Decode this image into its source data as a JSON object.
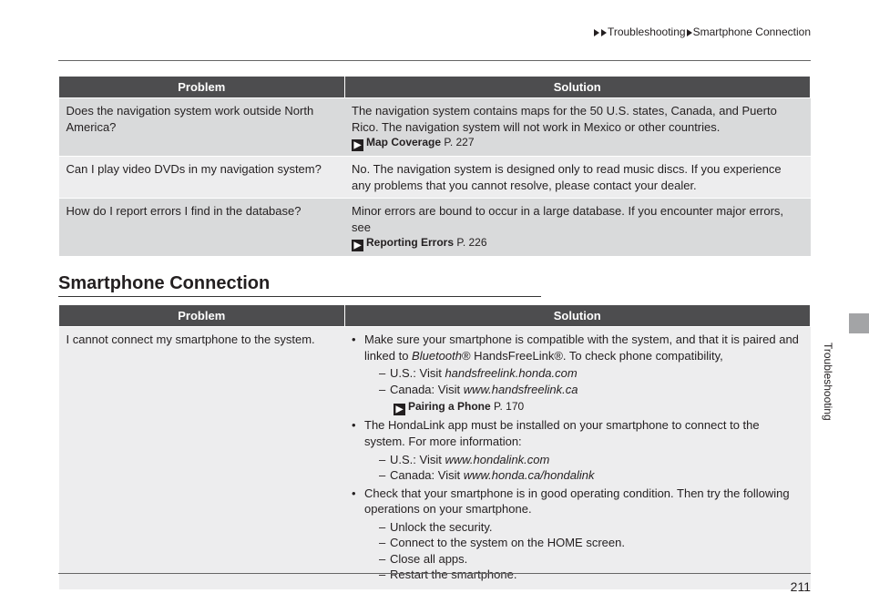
{
  "breadcrumb": {
    "part1": "Troubleshooting",
    "part2": "Smartphone Connection"
  },
  "headers": {
    "problem": "Problem",
    "solution": "Solution"
  },
  "table1": {
    "rows": [
      {
        "problem": "Does the navigation system work outside North America?",
        "solution": "The navigation system contains maps for the 50 U.S. states, Canada, and Puerto Rico. The navigation system will not work in Mexico or other countries.",
        "xref": {
          "title": "Map Coverage",
          "page": "P. 227"
        }
      },
      {
        "problem": "Can I play video DVDs in my navigation system?",
        "solution": "No. The navigation system is designed only to read music discs. If you experience any problems that you cannot resolve, please contact your dealer."
      },
      {
        "problem": "How do I report errors I find in the database?",
        "solution": "Minor errors are bound to occur in a large database. If you encounter major errors, see",
        "xref": {
          "title": "Reporting Errors",
          "page": "P. 226"
        }
      }
    ]
  },
  "sectionTitle": "Smartphone Connection",
  "table2": {
    "problem": "I cannot connect my smartphone to the system.",
    "bullet1a": "Make sure your smartphone is compatible with the system, and that it is paired and linked to ",
    "bluetooth": "Bluetooth",
    "bullet1b": "® HandsFreeLink®. To check phone compatibility,",
    "sub1a": "U.S.: Visit ",
    "url1": "handsfreelink.honda.com",
    "sub1b": "Canada: Visit ",
    "url2": "www.handsfreelink.ca",
    "xref2": {
      "title": "Pairing a Phone",
      "page": "P. 170"
    },
    "bullet2": "The HondaLink app must be installed on your smartphone to connect to the system. For more information:",
    "sub2a": "U.S.: Visit ",
    "url3": "www.hondalink.com",
    "sub2b": "Canada: Visit ",
    "url4": "www.honda.ca/hondalink",
    "bullet3": "Check that your smartphone is in good operating condition. Then try the following operations on your smartphone.",
    "sub3a": "Unlock the security.",
    "sub3b": "Connect to the system on the HOME screen.",
    "sub3c": "Close all apps.",
    "sub3d": "Restart the smartphone."
  },
  "sideLabel": "Troubleshooting",
  "pageNumber": "211"
}
